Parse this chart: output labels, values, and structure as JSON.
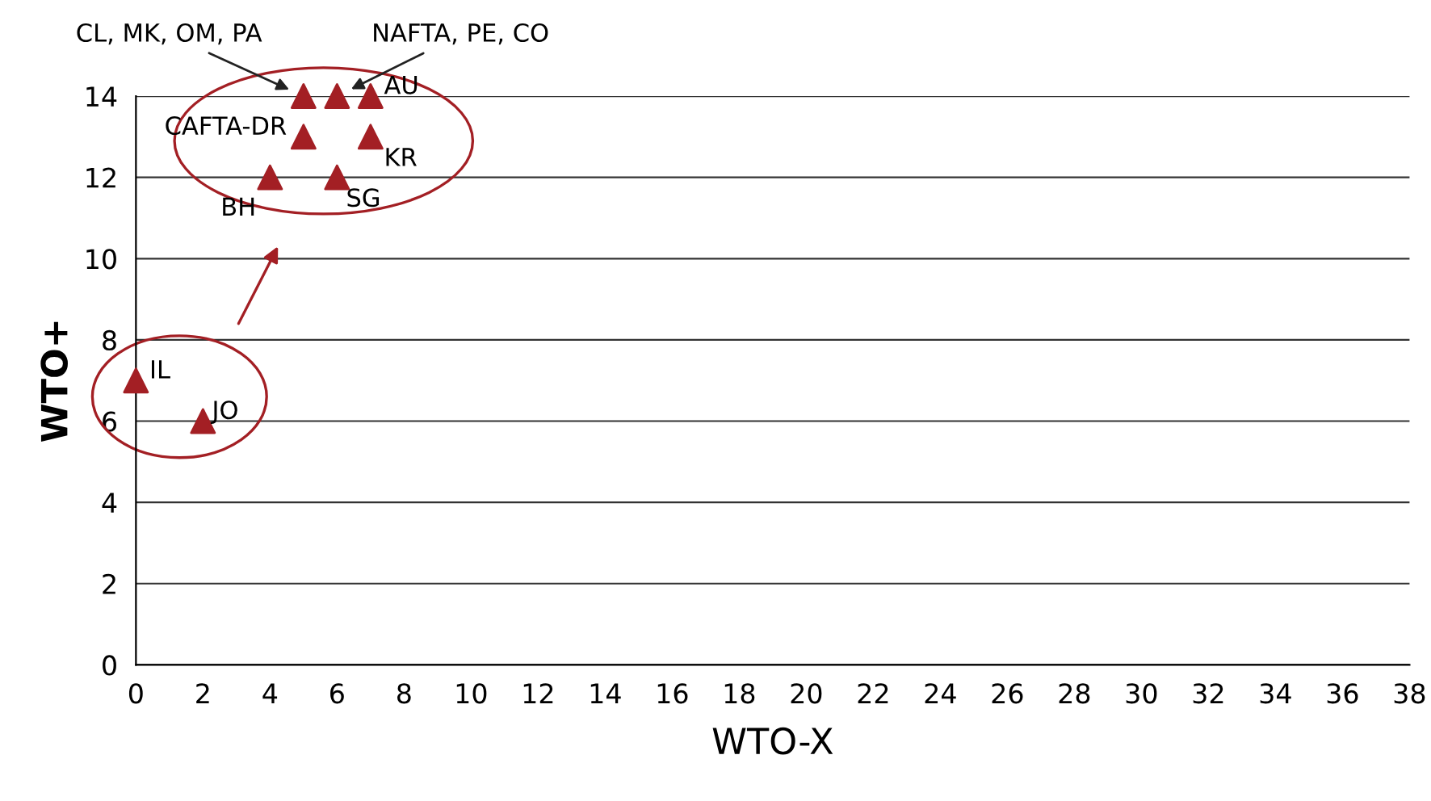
{
  "chart_data": {
    "type": "scatter",
    "xlabel": "WTO-X",
    "ylabel": "WTO+",
    "x": [
      5,
      6,
      7,
      5,
      7,
      4,
      6,
      0,
      2
    ],
    "values": [
      14,
      14,
      14,
      13,
      13,
      12,
      12,
      7,
      6
    ],
    "color": "#a31f24",
    "marker": "triangle",
    "xlim": [
      0,
      38
    ],
    "xticks": [
      0,
      2,
      4,
      6,
      8,
      10,
      12,
      14,
      16,
      18,
      20,
      22,
      24,
      26,
      28,
      30,
      32,
      34,
      36,
      38
    ],
    "ylim": [
      0,
      14
    ],
    "yticks": [
      0,
      2,
      4,
      6,
      8,
      10,
      12,
      14
    ],
    "grid": "y",
    "legend": false,
    "annotations": [
      {
        "text": "CL, MK, OM, PA",
        "x": 5,
        "y": 14
      },
      {
        "text": "NAFTA, PE, CO",
        "x": 6,
        "y": 14
      },
      {
        "text": "AU",
        "x": 7,
        "y": 14
      },
      {
        "text": "CAFTA-DR",
        "x": 5,
        "y": 13
      },
      {
        "text": "KR",
        "x": 7,
        "y": 13
      },
      {
        "text": "BH",
        "x": 4,
        "y": 12
      },
      {
        "text": "SG",
        "x": 6,
        "y": 12
      },
      {
        "text": "IL",
        "x": 0,
        "y": 7
      },
      {
        "text": "JO",
        "x": 2,
        "y": 6
      }
    ]
  }
}
